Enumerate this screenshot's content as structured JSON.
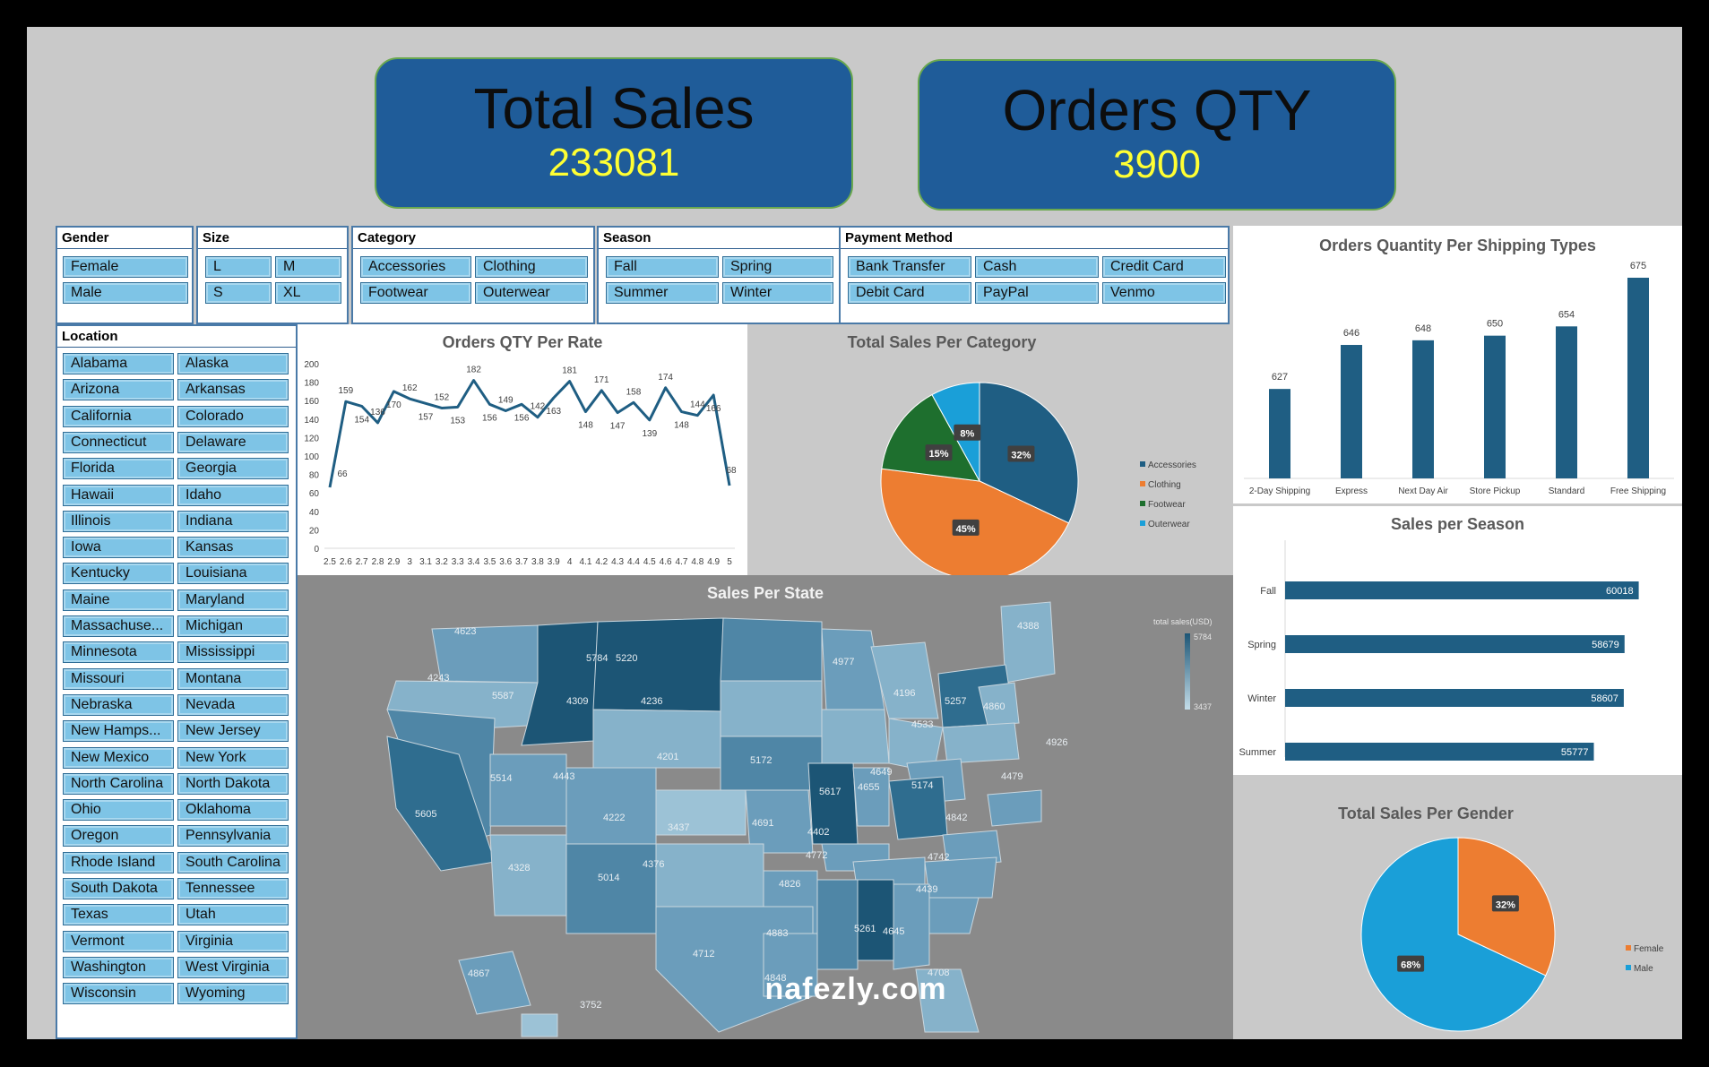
{
  "kpis": {
    "total_sales": {
      "title": "Total Sales",
      "value": "233081"
    },
    "orders_qty": {
      "title": "Orders QTY",
      "value": "3900"
    }
  },
  "slicers": {
    "gender": {
      "title": "Gender",
      "items": [
        "Female",
        "Male"
      ]
    },
    "size": {
      "title": "Size",
      "items": [
        "L",
        "M",
        "S",
        "XL"
      ]
    },
    "category": {
      "title": "Category",
      "items": [
        "Accessories",
        "Clothing",
        "Footwear",
        "Outerwear"
      ]
    },
    "season": {
      "title": "Season",
      "items": [
        "Fall",
        "Spring",
        "Summer",
        "Winter"
      ]
    },
    "payment": {
      "title": "Payment Method",
      "items": [
        "Bank Transfer",
        "Cash",
        "Credit Card",
        "Debit Card",
        "PayPal",
        "Venmo"
      ]
    },
    "location": {
      "title": "Location",
      "items": [
        "Alabama",
        "Alaska",
        "Arizona",
        "Arkansas",
        "California",
        "Colorado",
        "Connecticut",
        "Delaware",
        "Florida",
        "Georgia",
        "Hawaii",
        "Idaho",
        "Illinois",
        "Indiana",
        "Iowa",
        "Kansas",
        "Kentucky",
        "Louisiana",
        "Maine",
        "Maryland",
        "Massachuse...",
        "Michigan",
        "Minnesota",
        "Mississippi",
        "Missouri",
        "Montana",
        "Nebraska",
        "Nevada",
        "New Hamps...",
        "New Jersey",
        "New Mexico",
        "New York",
        "North Carolina",
        "North Dakota",
        "Ohio",
        "Oklahoma",
        "Oregon",
        "Pennsylvania",
        "Rhode Island",
        "South Carolina",
        "South Dakota",
        "Tennessee",
        "Texas",
        "Utah",
        "Vermont",
        "Virginia",
        "Washington",
        "West Virginia",
        "Wisconsin",
        "Wyoming"
      ]
    }
  },
  "colors": {
    "dark_blue": "#1f5e83",
    "orange": "#ed7d31",
    "green": "#1e6f2e",
    "light_blue": "#1a9fd8",
    "slicer": "#7ec4e6"
  },
  "chart_data": [
    {
      "type": "line",
      "title": "Orders QTY Per Rate",
      "x": [
        2.5,
        2.6,
        2.7,
        2.8,
        2.9,
        3,
        3.1,
        3.2,
        3.3,
        3.4,
        3.5,
        3.6,
        3.7,
        3.8,
        3.9,
        4,
        4.1,
        4.2,
        4.3,
        4.4,
        4.5,
        4.6,
        4.7,
        4.8,
        4.9,
        5
      ],
      "x_labels": [
        "2.5",
        "2.6",
        "2.7",
        "2.8",
        "2.9",
        "3",
        "3.1",
        "3.2",
        "3.3",
        "3.4",
        "3.5",
        "3.6",
        "3.7",
        "3.8",
        "3.9",
        "4",
        "4.1",
        "4.2",
        "4.3",
        "4.4",
        "4.5",
        "4.6",
        "4.7",
        "4.8",
        "4.9",
        "5"
      ],
      "values": [
        66,
        159,
        154,
        136,
        170,
        162,
        157,
        152,
        153,
        182,
        156,
        149,
        156,
        142,
        163,
        181,
        148,
        171,
        147,
        158,
        139,
        174,
        148,
        144,
        166,
        68
      ],
      "ylim": [
        0,
        200
      ],
      "yticks": [
        0,
        20,
        40,
        60,
        80,
        100,
        120,
        140,
        160,
        180,
        200
      ]
    },
    {
      "type": "pie",
      "title": "Total Sales Per Category",
      "labels": [
        "Accessories",
        "Clothing",
        "Footwear",
        "Outerwear"
      ],
      "values": [
        32,
        45,
        15,
        8
      ],
      "value_labels": [
        "32%",
        "45%",
        "15%",
        "8%"
      ],
      "colors": [
        "#1f5e83",
        "#ed7d31",
        "#1e6f2e",
        "#1a9fd8"
      ],
      "legend": "right"
    },
    {
      "type": "bar",
      "title": "Orders Quantity Per Shipping Types",
      "categories": [
        "2-Day Shipping",
        "Express",
        "Next Day Air",
        "Store Pickup",
        "Standard",
        "Free Shipping"
      ],
      "values": [
        627,
        646,
        648,
        650,
        654,
        675
      ]
    },
    {
      "type": "bar",
      "orientation": "horizontal",
      "title": "Sales per Season",
      "categories": [
        "Fall",
        "Spring",
        "Winter",
        "Summer"
      ],
      "values": [
        60018,
        58679,
        58607,
        55777
      ]
    },
    {
      "type": "pie",
      "title": "Total Sales Per Gender",
      "labels": [
        "Female",
        "Male"
      ],
      "values": [
        32,
        68
      ],
      "value_labels": [
        "32%",
        "68%"
      ],
      "colors": [
        "#ed7d31",
        "#1a9fd8"
      ],
      "legend": "right"
    },
    {
      "type": "heatmap",
      "title": "Sales Per State",
      "legend_title": "total sales(USD)",
      "legend_max": "5784",
      "legend_min": "3437",
      "labels": [
        "4623",
        "4243",
        "5587",
        "5784",
        "5220",
        "4977",
        "4196",
        "4388",
        "4236",
        "4309",
        "5257",
        "4533",
        "4860",
        "4201",
        "4926",
        "5172",
        "4649",
        "5514",
        "4443",
        "5617",
        "4655",
        "5174",
        "5605",
        "4222",
        "4691",
        "3437",
        "4479",
        "4402",
        "4842",
        "4328",
        "4376",
        "4772",
        "4742",
        "5014",
        "4826",
        "4439",
        "4883",
        "5261",
        "4645",
        "4712",
        "4848",
        "4867",
        "3752",
        "4708"
      ]
    }
  ],
  "watermark": "nafezly.com"
}
